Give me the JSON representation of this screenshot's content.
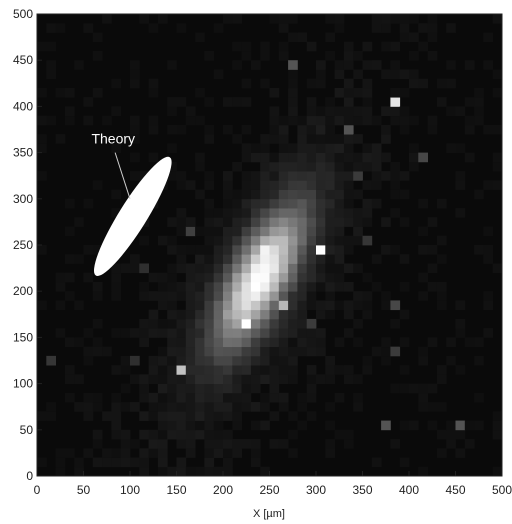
{
  "chart_data": {
    "type": "heatmap",
    "title": "",
    "xlabel": "X [µm]",
    "ylabel": "",
    "xlim": [
      0,
      500
    ],
    "ylim": [
      0,
      500
    ],
    "xticks": [
      0,
      50,
      100,
      150,
      200,
      250,
      300,
      350,
      400,
      450,
      500
    ],
    "yticks": [
      0,
      50,
      100,
      150,
      200,
      250,
      300,
      350,
      400,
      450,
      500
    ],
    "grid": false,
    "colormap": "grayscale",
    "colors": {
      "background": "#0a0a0a",
      "signal": "#ffffff",
      "axis": "#222222"
    },
    "annotations": [
      {
        "label": "Theory",
        "shape": "ellipse",
        "center": [
          103,
          281
        ],
        "half_axes": [
          75,
          15
        ],
        "angle_deg": 58,
        "label_at": [
          82,
          365
        ],
        "pointer_to": [
          100,
          300
        ]
      }
    ],
    "measured_blob": {
      "center": [
        240,
        215
      ],
      "half_axes": [
        95,
        35
      ],
      "angle_deg": 62,
      "peak_intensity": 0.92
    },
    "hot_pixels": [
      {
        "x": 225,
        "y": 165,
        "intensity": 1.0
      },
      {
        "x": 245,
        "y": 243,
        "intensity": 0.95
      },
      {
        "x": 305,
        "y": 243,
        "intensity": 1.0
      },
      {
        "x": 385,
        "y": 408,
        "intensity": 0.9
      },
      {
        "x": 158,
        "y": 110,
        "intensity": 0.75
      },
      {
        "x": 260,
        "y": 185,
        "intensity": 0.7
      },
      {
        "x": 200,
        "y": 178,
        "intensity": 0.6
      },
      {
        "x": 225,
        "y": 210,
        "intensity": 0.55
      },
      {
        "x": 270,
        "y": 440,
        "intensity": 0.3
      },
      {
        "x": 330,
        "y": 378,
        "intensity": 0.3
      },
      {
        "x": 410,
        "y": 345,
        "intensity": 0.25
      },
      {
        "x": 340,
        "y": 322,
        "intensity": 0.2
      },
      {
        "x": 370,
        "y": 55,
        "intensity": 0.3
      },
      {
        "x": 455,
        "y": 55,
        "intensity": 0.3
      },
      {
        "x": 15,
        "y": 122,
        "intensity": 0.18
      },
      {
        "x": 108,
        "y": 122,
        "intensity": 0.15
      },
      {
        "x": 165,
        "y": 268,
        "intensity": 0.22
      },
      {
        "x": 380,
        "y": 188,
        "intensity": 0.25
      },
      {
        "x": 290,
        "y": 165,
        "intensity": 0.2
      },
      {
        "x": 350,
        "y": 250,
        "intensity": 0.18
      },
      {
        "x": 110,
        "y": 220,
        "intensity": 0.15
      },
      {
        "x": 385,
        "y": 130,
        "intensity": 0.2
      }
    ]
  }
}
